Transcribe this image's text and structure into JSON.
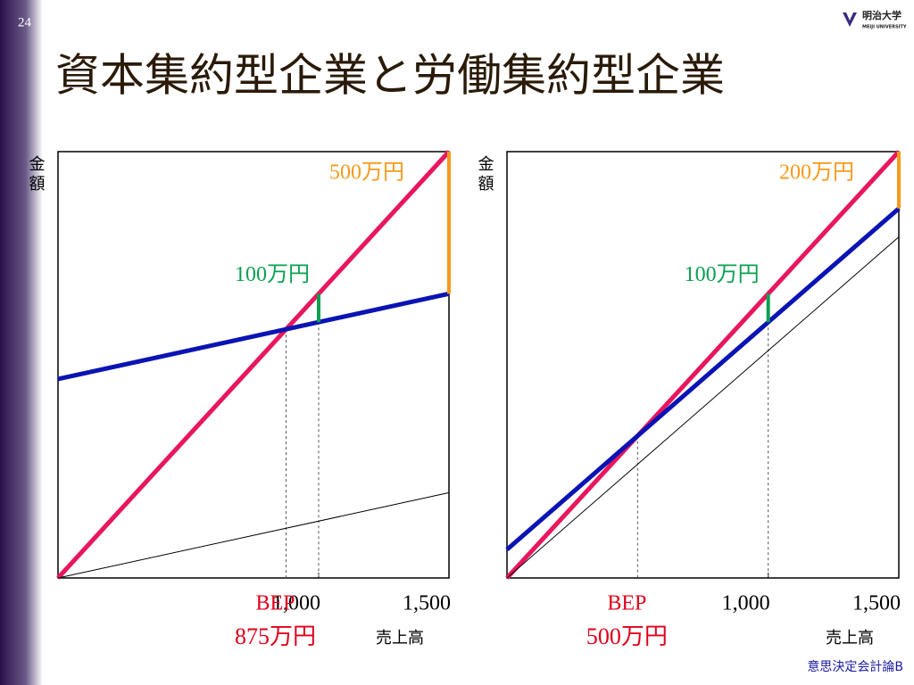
{
  "page_number": "24",
  "title": "資本集約型企業と労働集約型企業",
  "logo": {
    "name": "明治大学",
    "sub": "MEIJI UNIVERSITY"
  },
  "footer": "意思決定会計論B",
  "chart_data": [
    {
      "type": "line",
      "x_label": "売上高",
      "y_label": "金額",
      "xlim": [
        0,
        1500
      ],
      "ylim": [
        0,
        1500
      ],
      "xticks": [
        {
          "value": 1000,
          "label": "1,000"
        },
        {
          "value": 1500,
          "label": "1,500"
        }
      ],
      "x": [
        0,
        1500
      ],
      "series": [
        {
          "color": "#e8175d",
          "width": 5,
          "values": [
            0,
            1500
          ]
        },
        {
          "color": "#0a14b4",
          "width": 5,
          "values": [
            700,
            1000
          ]
        },
        {
          "color": "#000000",
          "width": 1,
          "values": [
            0,
            300
          ]
        }
      ],
      "annotations": [
        {
          "label": "500万円",
          "x": 1500,
          "from": 1000,
          "to": 1500,
          "color": "#f59a1b",
          "label_color": "#f59a1b"
        },
        {
          "label": "100万円",
          "x": 1000,
          "from": 900,
          "to": 1000,
          "color": "#0aa050",
          "label_color": "#0aa050"
        }
      ],
      "bep": {
        "label": "BEP",
        "x": 875,
        "value_label": "875万円",
        "color": "#e0001a"
      }
    },
    {
      "type": "line",
      "x_label": "売上高",
      "y_label": "金額",
      "xlim": [
        0,
        1500
      ],
      "ylim": [
        0,
        1500
      ],
      "xticks": [
        {
          "value": 1000,
          "label": "1,000"
        },
        {
          "value": 1500,
          "label": "1,500"
        }
      ],
      "x": [
        0,
        1500
      ],
      "series": [
        {
          "color": "#e8175d",
          "width": 5,
          "values": [
            0,
            1500
          ]
        },
        {
          "color": "#0a14b4",
          "width": 5,
          "values": [
            100,
            1300
          ]
        },
        {
          "color": "#000000",
          "width": 1,
          "values": [
            0,
            1200
          ]
        }
      ],
      "annotations": [
        {
          "label": "200万円",
          "x": 1500,
          "from": 1300,
          "to": 1500,
          "color": "#f59a1b",
          "label_color": "#f59a1b"
        },
        {
          "label": "100万円",
          "x": 1000,
          "from": 900,
          "to": 1000,
          "color": "#0aa050",
          "label_color": "#0aa050"
        }
      ],
      "bep": {
        "label": "BEP",
        "x": 500,
        "value_label": "500万円",
        "color": "#e0001a"
      }
    }
  ]
}
